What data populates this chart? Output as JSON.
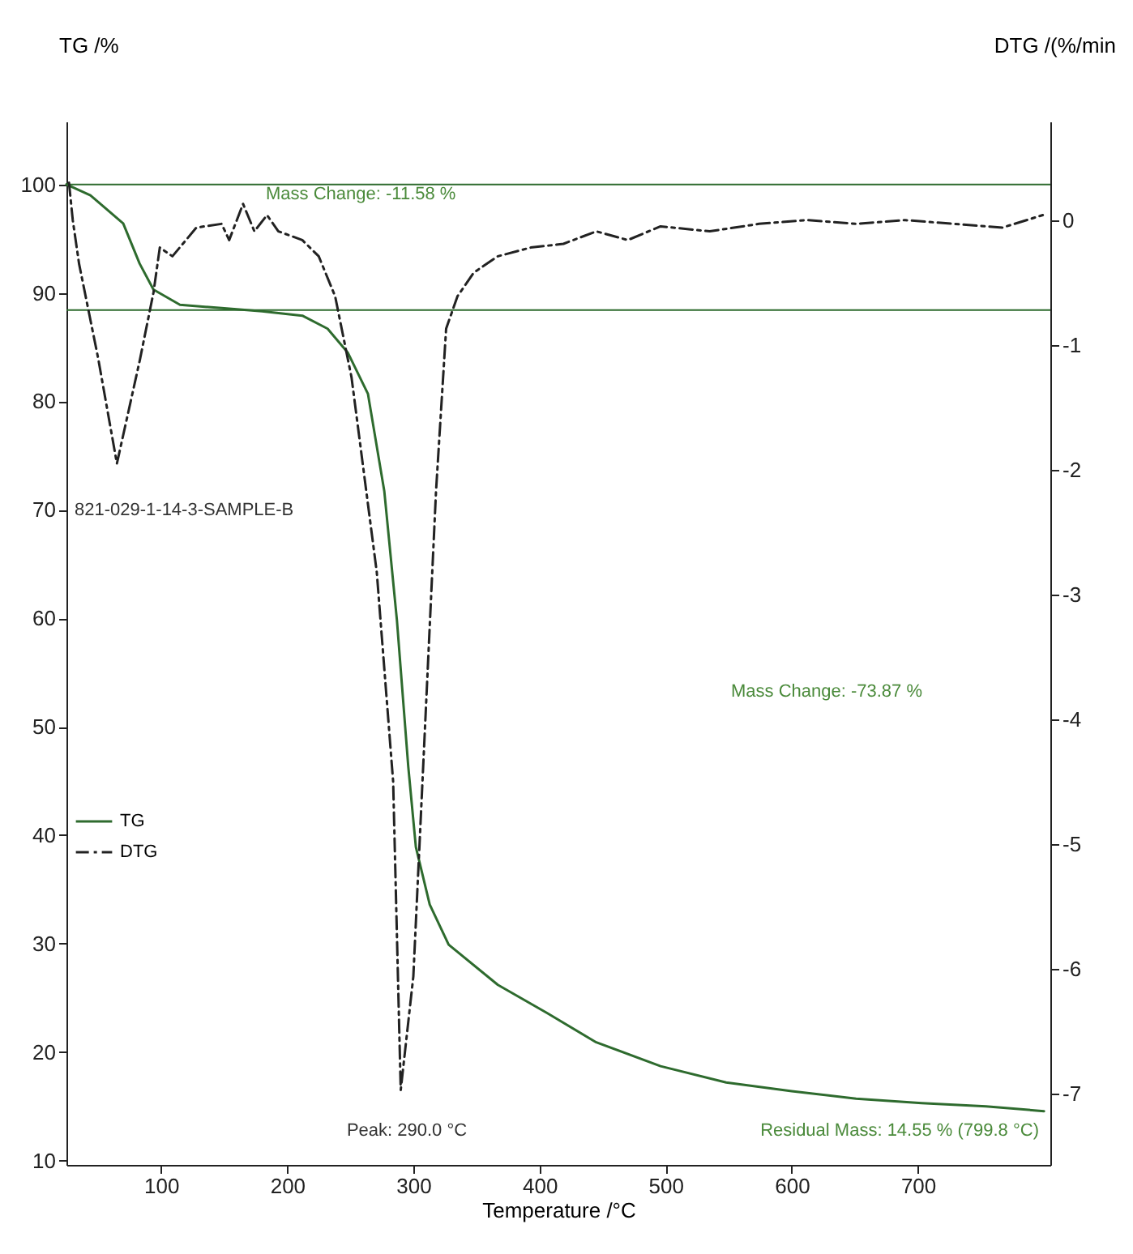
{
  "chart_data": {
    "type": "line",
    "xlabel": "Temperature /°C",
    "ylabel": "TG /%",
    "y2label": "DTG /(%/min",
    "xlim": [
      25,
      805
    ],
    "xticks": [
      100,
      200,
      300,
      400,
      500,
      600,
      700
    ],
    "ylim": [
      9.6,
      105.8
    ],
    "yticks": [
      10,
      20,
      30,
      40,
      50,
      60,
      70,
      80,
      90,
      100
    ],
    "y2lim": [
      -7.57,
      0.79
    ],
    "y2ticks": [
      -7,
      -6,
      -5,
      -4,
      -3,
      -2,
      -1,
      0
    ],
    "grid": false,
    "legend": "left",
    "series": [
      {
        "name": "TG",
        "color": "#2e6b2e",
        "line_style": "solid",
        "x": [
          25,
          44,
          70,
          83,
          94,
          115,
          148,
          180,
          212,
          232,
          248,
          264,
          277,
          287,
          296,
          302,
          313,
          328,
          367,
          406,
          445,
          496,
          548,
          600,
          651,
          703,
          754,
          800
        ],
        "values": [
          100,
          99,
          96.4,
          92.7,
          90.3,
          88.9,
          88.6,
          88.3,
          87.9,
          86.7,
          84.5,
          80.7,
          71.7,
          59.8,
          46.3,
          38.9,
          33.6,
          29.9,
          26.2,
          23.6,
          20.9,
          18.7,
          17.2,
          16.4,
          15.7,
          15.3,
          15,
          14.55
        ]
      },
      {
        "name": "DTG",
        "color": "#222222",
        "line_style": "dashed",
        "axis": "y2",
        "x": [
          27,
          30,
          35,
          50,
          65,
          83,
          94,
          99,
          109,
          128,
          148,
          154,
          165,
          174,
          184,
          193,
          212,
          225,
          238,
          251,
          271,
          284,
          290,
          300,
          309,
          318,
          326,
          335,
          348,
          367,
          393,
          419,
          445,
          470,
          496,
          535,
          574,
          612,
          651,
          690,
          728,
          767,
          799
        ],
        "values": [
          0.3,
          0,
          -0.35,
          -1.1,
          -1.95,
          -1.13,
          -0.58,
          -0.22,
          -0.29,
          -0.06,
          -0.03,
          -0.16,
          0.13,
          -0.09,
          0.04,
          -0.09,
          -0.16,
          -0.29,
          -0.61,
          -1.26,
          -2.82,
          -4.5,
          -6.97,
          -6.06,
          -4.12,
          -2.17,
          -0.87,
          -0.61,
          -0.42,
          -0.29,
          -0.22,
          -0.19,
          -0.09,
          -0.16,
          -0.05,
          -0.09,
          -0.03,
          0,
          -0.03,
          0,
          -0.03,
          -0.06,
          0.04
        ]
      }
    ],
    "ref_lines": [
      {
        "axis": "y",
        "value": 100,
        "color": "#2e6b2e"
      },
      {
        "axis": "y",
        "value": 88.42,
        "color": "#2e6b2e"
      }
    ],
    "annotations": [
      "Mass Change: -11.58 %",
      "821-029-1-14-3-SAMPLE-B",
      "Peak: 290.0 °C",
      "Mass Change: -73.87 %",
      "Residual Mass: 14.55 % (799.8 °C)"
    ]
  }
}
